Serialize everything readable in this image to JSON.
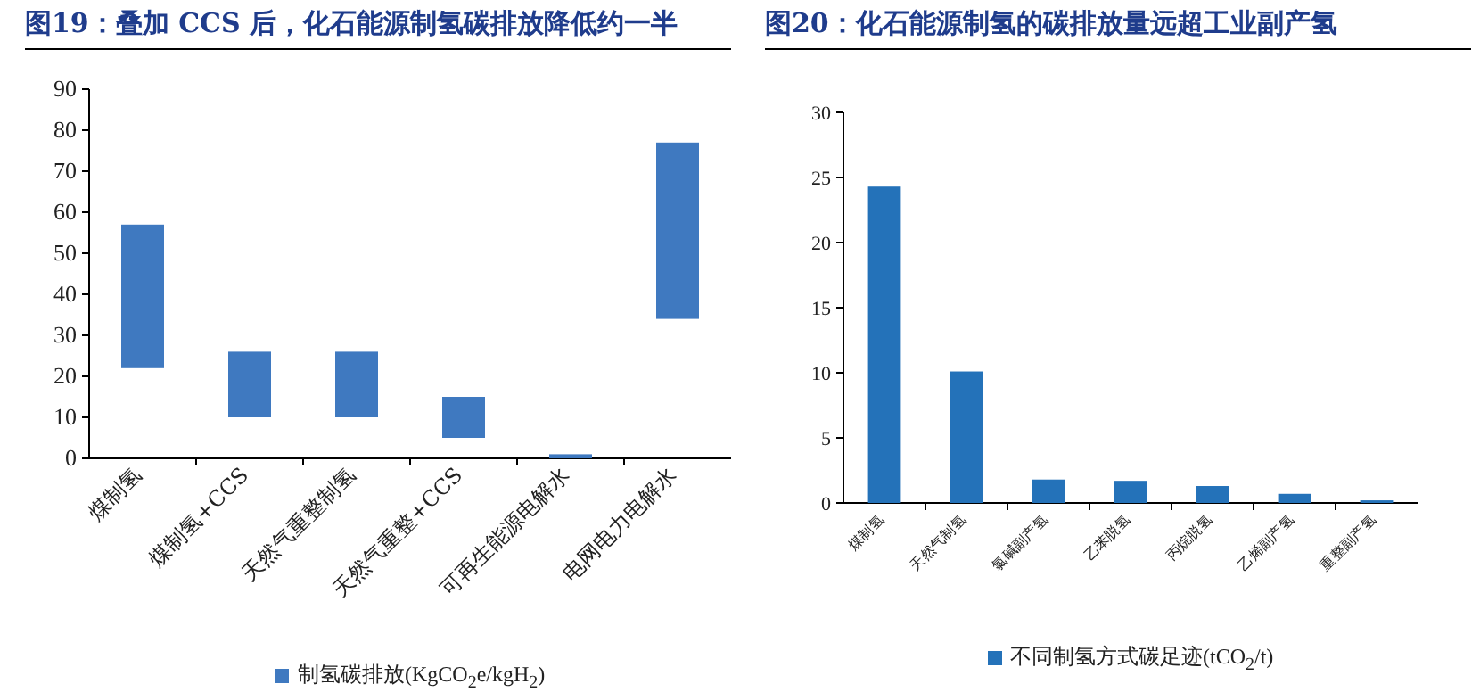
{
  "chart_data": [
    {
      "type": "bar",
      "title": "图19：叠加 CCS 后，化石能源制氢碳排放降低约一半",
      "categories": [
        "煤制氢",
        "煤制氢+CCS",
        "天然气重整制氢",
        "天然气重整+CCS",
        "可再生能源电解水",
        "电网电力电解水"
      ],
      "series": [
        {
          "name": "制氢碳排放(KgCO$_{2}$e/kgH$_{2}$)",
          "color": "#3f79c0",
          "values": [
            35,
            16,
            16,
            10,
            1,
            43
          ],
          "base": [
            22,
            10,
            10,
            5,
            0,
            34
          ]
        }
      ],
      "ylim": [
        0,
        90
      ],
      "yticks": [
        0,
        10,
        20,
        30,
        40,
        50,
        60,
        70,
        80,
        90
      ],
      "legend": "bottom"
    },
    {
      "type": "bar",
      "title": "图20：化石能源制氢的碳排放量远超工业副产氢",
      "categories": [
        "煤制氢",
        "天然气制氢",
        "氯碱副产氢",
        "乙苯脱氢",
        "丙烷脱氢",
        "乙烯副产氢",
        "重整副产氢"
      ],
      "series": [
        {
          "name": "不同制氢方式碳足迹(tCO$_{2}$/t)",
          "color": "#2472b9",
          "values": [
            24.3,
            10.1,
            1.8,
            1.7,
            1.3,
            0.7,
            0.2
          ]
        }
      ],
      "ylim": [
        0,
        30
      ],
      "yticks": [
        0,
        5,
        10,
        15,
        20,
        25,
        30
      ],
      "legend": "bottom"
    }
  ]
}
